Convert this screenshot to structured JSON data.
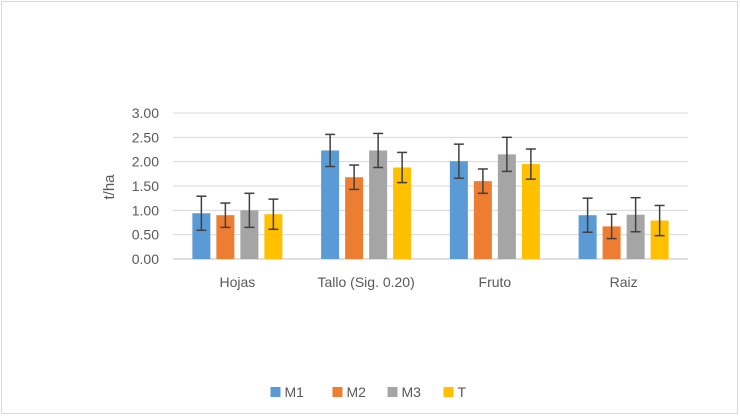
{
  "chart_data": {
    "type": "bar",
    "title": "",
    "xlabel": "",
    "ylabel": "t/ha",
    "ylim": [
      0,
      3
    ],
    "yticks": [
      "0.00",
      "0.50",
      "1.00",
      "1.50",
      "2.00",
      "2.50",
      "3.00"
    ],
    "grid": true,
    "legend_position": "bottom",
    "categories": [
      "Hojas",
      "Tallo (Sig. 0.20)",
      "Fruto",
      "Raiz"
    ],
    "series": [
      {
        "name": "M1",
        "color": "#5b9bd5",
        "values": [
          0.94,
          2.23,
          2.01,
          0.9
        ],
        "errors": [
          0.35,
          0.33,
          0.35,
          0.35
        ]
      },
      {
        "name": "M2",
        "color": "#ed7d31",
        "values": [
          0.9,
          1.68,
          1.6,
          0.67
        ],
        "errors": [
          0.25,
          0.25,
          0.25,
          0.25
        ]
      },
      {
        "name": "M3",
        "color": "#a5a5a5",
        "values": [
          1.0,
          2.23,
          2.15,
          0.91
        ],
        "errors": [
          0.35,
          0.35,
          0.35,
          0.35
        ]
      },
      {
        "name": "T",
        "color": "#ffc000",
        "values": [
          0.92,
          1.88,
          1.95,
          0.79
        ],
        "errors": [
          0.31,
          0.31,
          0.31,
          0.31
        ]
      }
    ]
  }
}
